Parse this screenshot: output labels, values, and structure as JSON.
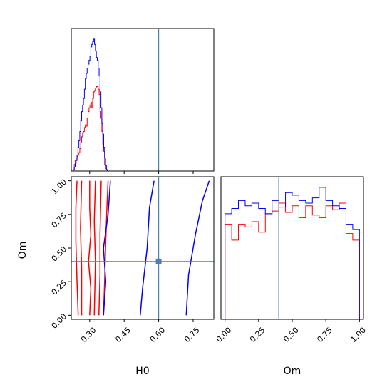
{
  "chart_data": {
    "type": "corner",
    "parameters": [
      "H0",
      "Om"
    ],
    "truths": {
      "H0": 0.6,
      "Om": 0.4
    },
    "truth_color": "#4682b4",
    "series": [
      {
        "color": "#ff0000"
      },
      {
        "color": "#0000ff"
      }
    ],
    "panels": [
      {
        "id": "H0-marginal",
        "type": "histogram",
        "xlim": [
          0.22,
          0.84
        ],
        "xticks": [
          0.3,
          0.45,
          0.6,
          0.75
        ],
        "bin_edges": [
          0.221,
          0.225,
          0.229,
          0.233,
          0.237,
          0.241,
          0.245,
          0.249,
          0.253,
          0.257,
          0.261,
          0.265,
          0.269,
          0.273,
          0.277,
          0.281,
          0.285,
          0.289,
          0.293,
          0.297,
          0.301,
          0.305,
          0.309,
          0.313,
          0.317,
          0.321,
          0.325,
          0.329,
          0.333,
          0.337,
          0.341,
          0.345,
          0.349,
          0.353,
          0.357,
          0.361,
          0.365,
          0.369,
          0.373,
          0.377,
          0.381
        ],
        "series": [
          {
            "counts": [
              0,
              0,
              1,
              5,
              8,
              10,
              11,
              12,
              14,
              17,
              22,
              26,
              29,
              30,
              33,
              35,
              34,
              40,
              45,
              48,
              50,
              52,
              48,
              55,
              60,
              61,
              63,
              64,
              64,
              62,
              58,
              45,
              40,
              30,
              20,
              15,
              5,
              2,
              1,
              0
            ]
          },
          {
            "counts": [
              0,
              0,
              1,
              3,
              6,
              8,
              12,
              18,
              23,
              30,
              38,
              45,
              50,
              55,
              62,
              70,
              74,
              78,
              81,
              84,
              87,
              94,
              96,
              98,
              100,
              96,
              91,
              86,
              84,
              78,
              72,
              60,
              48,
              36,
              28,
              18,
              10,
              4,
              1,
              0
            ]
          }
        ]
      },
      {
        "id": "Om-marginal",
        "type": "histogram",
        "xlim": [
          -0.03,
          1.03
        ],
        "xticks": [
          0.0,
          0.25,
          0.5,
          0.75,
          1.0
        ],
        "bin_edges": [
          0.0,
          0.05,
          0.1,
          0.15,
          0.2,
          0.25,
          0.3,
          0.35,
          0.4,
          0.45,
          0.5,
          0.55,
          0.6,
          0.65,
          0.7,
          0.75,
          0.8,
          0.85,
          0.9,
          0.95,
          1.0
        ],
        "series": [
          {
            "counts": [
              72,
              60,
              72,
              70,
              74,
              66,
              80,
              82,
              88,
              81,
              86,
              77,
              86,
              79,
              77,
              86,
              83,
              88,
              65,
              60
            ]
          },
          {
            "counts": [
              80,
              84,
              90,
              86,
              88,
              84,
              80,
              90,
              85,
              96,
              94,
              90,
              88,
              92,
              100,
              90,
              86,
              84,
              72,
              68
            ]
          }
        ]
      },
      {
        "id": "H0-Om-joint",
        "type": "contour",
        "xlim": [
          0.22,
          0.84
        ],
        "ylim": [
          -0.03,
          1.03
        ],
        "xticks": [
          0.3,
          0.45,
          0.6,
          0.75
        ],
        "yticks": [
          0.0,
          0.25,
          0.5,
          0.75,
          1.0
        ],
        "series": [
          {
            "levels": [
              [
                [
                  0.3,
                  0.0
                ],
                [
                  0.305,
                  0.2
                ],
                [
                  0.295,
                  0.4
                ],
                [
                  0.305,
                  0.6
                ],
                [
                  0.3,
                  0.8
                ],
                [
                  0.3,
                  1.0
                ]
              ],
              [
                [
                  0.25,
                  0.0
                ],
                [
                  0.245,
                  0.25
                ],
                [
                  0.24,
                  0.55
                ],
                [
                  0.24,
                  0.8
                ],
                [
                  0.245,
                  1.0
                ]
              ],
              [
                [
                  0.265,
                  0.0
                ],
                [
                  0.265,
                  0.35
                ],
                [
                  0.26,
                  0.65
                ],
                [
                  0.265,
                  1.0
                ]
              ],
              [
                [
                  0.36,
                  0.0
                ],
                [
                  0.365,
                  0.25
                ],
                [
                  0.37,
                  0.55
                ],
                [
                  0.375,
                  0.8
                ],
                [
                  0.38,
                  1.0
                ]
              ],
              [
                [
                  0.34,
                  0.0
                ],
                [
                  0.345,
                  0.3
                ],
                [
                  0.345,
                  0.6
                ],
                [
                  0.35,
                  1.0
                ]
              ],
              [
                [
                  0.32,
                  0.0
                ],
                [
                  0.325,
                  0.4
                ],
                [
                  0.32,
                  0.7
                ],
                [
                  0.325,
                  1.0
                ]
              ]
            ]
          },
          {
            "levels": [
              [
                [
                  0.52,
                  0.0
                ],
                [
                  0.53,
                  0.2
                ],
                [
                  0.55,
                  0.5
                ],
                [
                  0.56,
                  0.8
                ],
                [
                  0.58,
                  1.0
                ]
              ],
              [
                [
                  0.72,
                  0.0
                ],
                [
                  0.73,
                  0.3
                ],
                [
                  0.76,
                  0.6
                ],
                [
                  0.79,
                  0.85
                ],
                [
                  0.82,
                  1.0
                ]
              ],
              [
                [
                  0.36,
                  0.0
                ],
                [
                  0.37,
                  0.25
                ],
                [
                  0.36,
                  0.5
                ],
                [
                  0.38,
                  0.75
                ],
                [
                  0.39,
                  1.0
                ]
              ]
            ]
          }
        ]
      }
    ],
    "labels": {
      "xlabel_left": "H0",
      "ylabel_joint": "Om",
      "xlabel_right": "Om"
    },
    "grid": false,
    "legend": "none"
  }
}
